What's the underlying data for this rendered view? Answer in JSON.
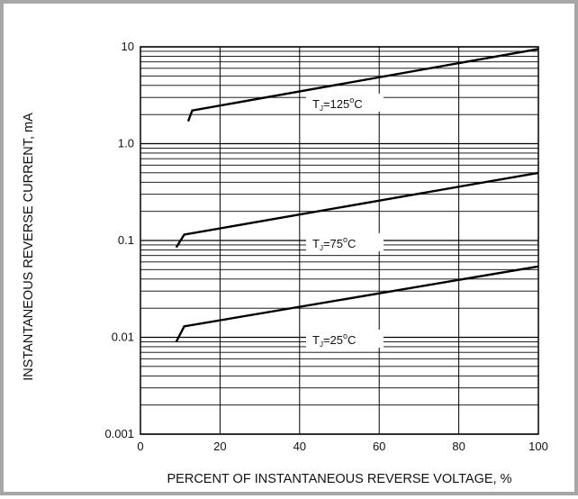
{
  "chart_data": {
    "type": "line",
    "title": "",
    "xlabel": "PERCENT OF INSTANTANEOUS REVERSE VOLTAGE, %",
    "ylabel": "INSTANTANEOUS  REVERSE  CURRENT, mA",
    "xlim": [
      0,
      100
    ],
    "ylim": [
      0.001,
      10
    ],
    "yscale": "log",
    "grid": true,
    "legend": "none",
    "x_ticks": [
      0,
      20,
      40,
      60,
      80,
      100
    ],
    "x_tick_labels": [
      "0",
      "20",
      "40",
      "60",
      "80",
      "100"
    ],
    "y_ticks": [
      0.001,
      0.01,
      0.1,
      1,
      10
    ],
    "y_tick_labels": [
      "0.001",
      "0.01",
      "0.1",
      "1.0",
      "10"
    ],
    "series": [
      {
        "name": "T_J=125°C",
        "label_main": "T",
        "label_sub": "J",
        "label_rest": "=125",
        "label_deg": "o",
        "label_unit": "C",
        "label_at": [
          50,
          2.6
        ],
        "x": [
          12,
          13,
          100
        ],
        "y": [
          1.7,
          2.2,
          9.5
        ]
      },
      {
        "name": "T_J=75°C",
        "label_main": "T",
        "label_sub": "J",
        "label_rest": "=75",
        "label_deg": "o",
        "label_unit": "C",
        "label_at": [
          50,
          0.094
        ],
        "x": [
          9,
          11,
          100
        ],
        "y": [
          0.085,
          0.115,
          0.5
        ]
      },
      {
        "name": "T_J=25°C",
        "label_main": "T",
        "label_sub": "J",
        "label_rest": "=25",
        "label_deg": "o",
        "label_unit": "C",
        "label_at": [
          50,
          0.0095
        ],
        "x": [
          9,
          11,
          100
        ],
        "y": [
          0.009,
          0.013,
          0.054
        ]
      }
    ]
  }
}
